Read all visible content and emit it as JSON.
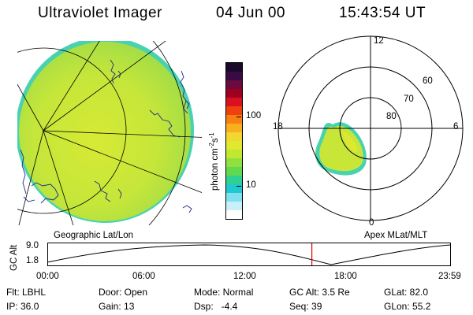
{
  "header": {
    "instrument": "Ultraviolet Imager",
    "date": "04 Jun 00",
    "time": "15:43:54 UT"
  },
  "colorbar": {
    "label": "photon cm",
    "label_exp1": "-2",
    "label_mid": "s",
    "label_exp2": "-1",
    "ticks": [
      "100",
      "10"
    ],
    "colors": [
      "#1a0a2a",
      "#3a0a44",
      "#6a0a40",
      "#a00020",
      "#d81020",
      "#f04010",
      "#f88010",
      "#f8b020",
      "#f0d830",
      "#e0e830",
      "#c0e830",
      "#90e040",
      "#60d850",
      "#30d090",
      "#20c8d0",
      "#80e0f0",
      "#c8f0f8",
      "#ffffff"
    ]
  },
  "left_panel": {
    "label": "Geographic Lat/Lon"
  },
  "right_panel": {
    "label": "Apex MLat/MLT",
    "mlt_labels": [
      "12",
      "18",
      "6",
      "0"
    ],
    "lat_labels": [
      "60",
      "70",
      "80"
    ]
  },
  "timeline": {
    "ylabel": "GC Alt",
    "y_ticks": [
      "9.0",
      "1.8"
    ],
    "x_ticks": [
      "00:00",
      "06:00",
      "12:00",
      "18:00",
      "23:59"
    ],
    "current_time_fraction": 0.6555
  },
  "info": {
    "row1": [
      "Flt: LBHL",
      "Door: Open",
      "Mode: Normal",
      "GC Alt: 3.5 Re",
      "GLat: 82.0"
    ],
    "row2": [
      "IP: 36.0",
      "Gain: 13",
      "Dsp:   -4.4",
      "Seq: 39",
      "GLon: 55.2"
    ]
  },
  "colors": {
    "aurora_main": "#cde838",
    "aurora_edge": "#3cd0a0",
    "current_time_marker": "#e00000"
  }
}
